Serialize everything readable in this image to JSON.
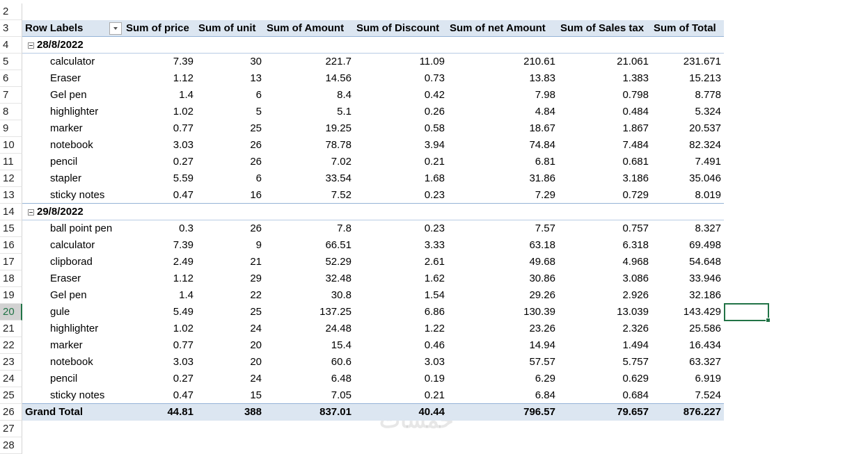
{
  "row_numbers": [
    "2",
    "3",
    "4",
    "5",
    "6",
    "7",
    "8",
    "9",
    "10",
    "11",
    "12",
    "13",
    "14",
    "15",
    "16",
    "17",
    "18",
    "19",
    "20",
    "21",
    "22",
    "23",
    "24",
    "25",
    "26",
    "27",
    "28"
  ],
  "pivot": {
    "header": [
      "Row Labels",
      "Sum of price",
      "Sum of unit",
      "Sum of Amount",
      "Sum of Discount",
      "Sum of net Amount",
      "Sum of Sales tax",
      "Sum of Total"
    ],
    "groups": [
      {
        "label": "28/8/2022",
        "rows": [
          [
            "calculator",
            "7.39",
            "30",
            "221.7",
            "11.09",
            "210.61",
            "21.061",
            "231.671"
          ],
          [
            "Eraser",
            "1.12",
            "13",
            "14.56",
            "0.73",
            "13.83",
            "1.383",
            "15.213"
          ],
          [
            "Gel pen",
            "1.4",
            "6",
            "8.4",
            "0.42",
            "7.98",
            "0.798",
            "8.778"
          ],
          [
            "highlighter",
            "1.02",
            "5",
            "5.1",
            "0.26",
            "4.84",
            "0.484",
            "5.324"
          ],
          [
            "marker",
            "0.77",
            "25",
            "19.25",
            "0.58",
            "18.67",
            "1.867",
            "20.537"
          ],
          [
            "notebook",
            "3.03",
            "26",
            "78.78",
            "3.94",
            "74.84",
            "7.484",
            "82.324"
          ],
          [
            "pencil",
            "0.27",
            "26",
            "7.02",
            "0.21",
            "6.81",
            "0.681",
            "7.491"
          ],
          [
            "stapler",
            "5.59",
            "6",
            "33.54",
            "1.68",
            "31.86",
            "3.186",
            "35.046"
          ],
          [
            "sticky notes",
            "0.47",
            "16",
            "7.52",
            "0.23",
            "7.29",
            "0.729",
            "8.019"
          ]
        ]
      },
      {
        "label": "29/8/2022",
        "rows": [
          [
            "ball point pen",
            "0.3",
            "26",
            "7.8",
            "0.23",
            "7.57",
            "0.757",
            "8.327"
          ],
          [
            "calculator",
            "7.39",
            "9",
            "66.51",
            "3.33",
            "63.18",
            "6.318",
            "69.498"
          ],
          [
            "clipborad",
            "2.49",
            "21",
            "52.29",
            "2.61",
            "49.68",
            "4.968",
            "54.648"
          ],
          [
            "Eraser",
            "1.12",
            "29",
            "32.48",
            "1.62",
            "30.86",
            "3.086",
            "33.946"
          ],
          [
            "Gel pen",
            "1.4",
            "22",
            "30.8",
            "1.54",
            "29.26",
            "2.926",
            "32.186"
          ],
          [
            "gule",
            "5.49",
            "25",
            "137.25",
            "6.86",
            "130.39",
            "13.039",
            "143.429"
          ],
          [
            "highlighter",
            "1.02",
            "24",
            "24.48",
            "1.22",
            "23.26",
            "2.326",
            "25.586"
          ],
          [
            "marker",
            "0.77",
            "20",
            "15.4",
            "0.46",
            "14.94",
            "1.494",
            "16.434"
          ],
          [
            "notebook",
            "3.03",
            "20",
            "60.6",
            "3.03",
            "57.57",
            "5.757",
            "63.327"
          ],
          [
            "pencil",
            "0.27",
            "24",
            "6.48",
            "0.19",
            "6.29",
            "0.629",
            "6.919"
          ],
          [
            "sticky notes",
            "0.47",
            "15",
            "7.05",
            "0.21",
            "6.84",
            "0.684",
            "7.524"
          ]
        ]
      }
    ],
    "grand_total": [
      "Grand Total",
      "44.81",
      "388",
      "837.01",
      "40.44",
      "796.57",
      "79.657",
      "876.227"
    ]
  },
  "watermark": "خمسات"
}
